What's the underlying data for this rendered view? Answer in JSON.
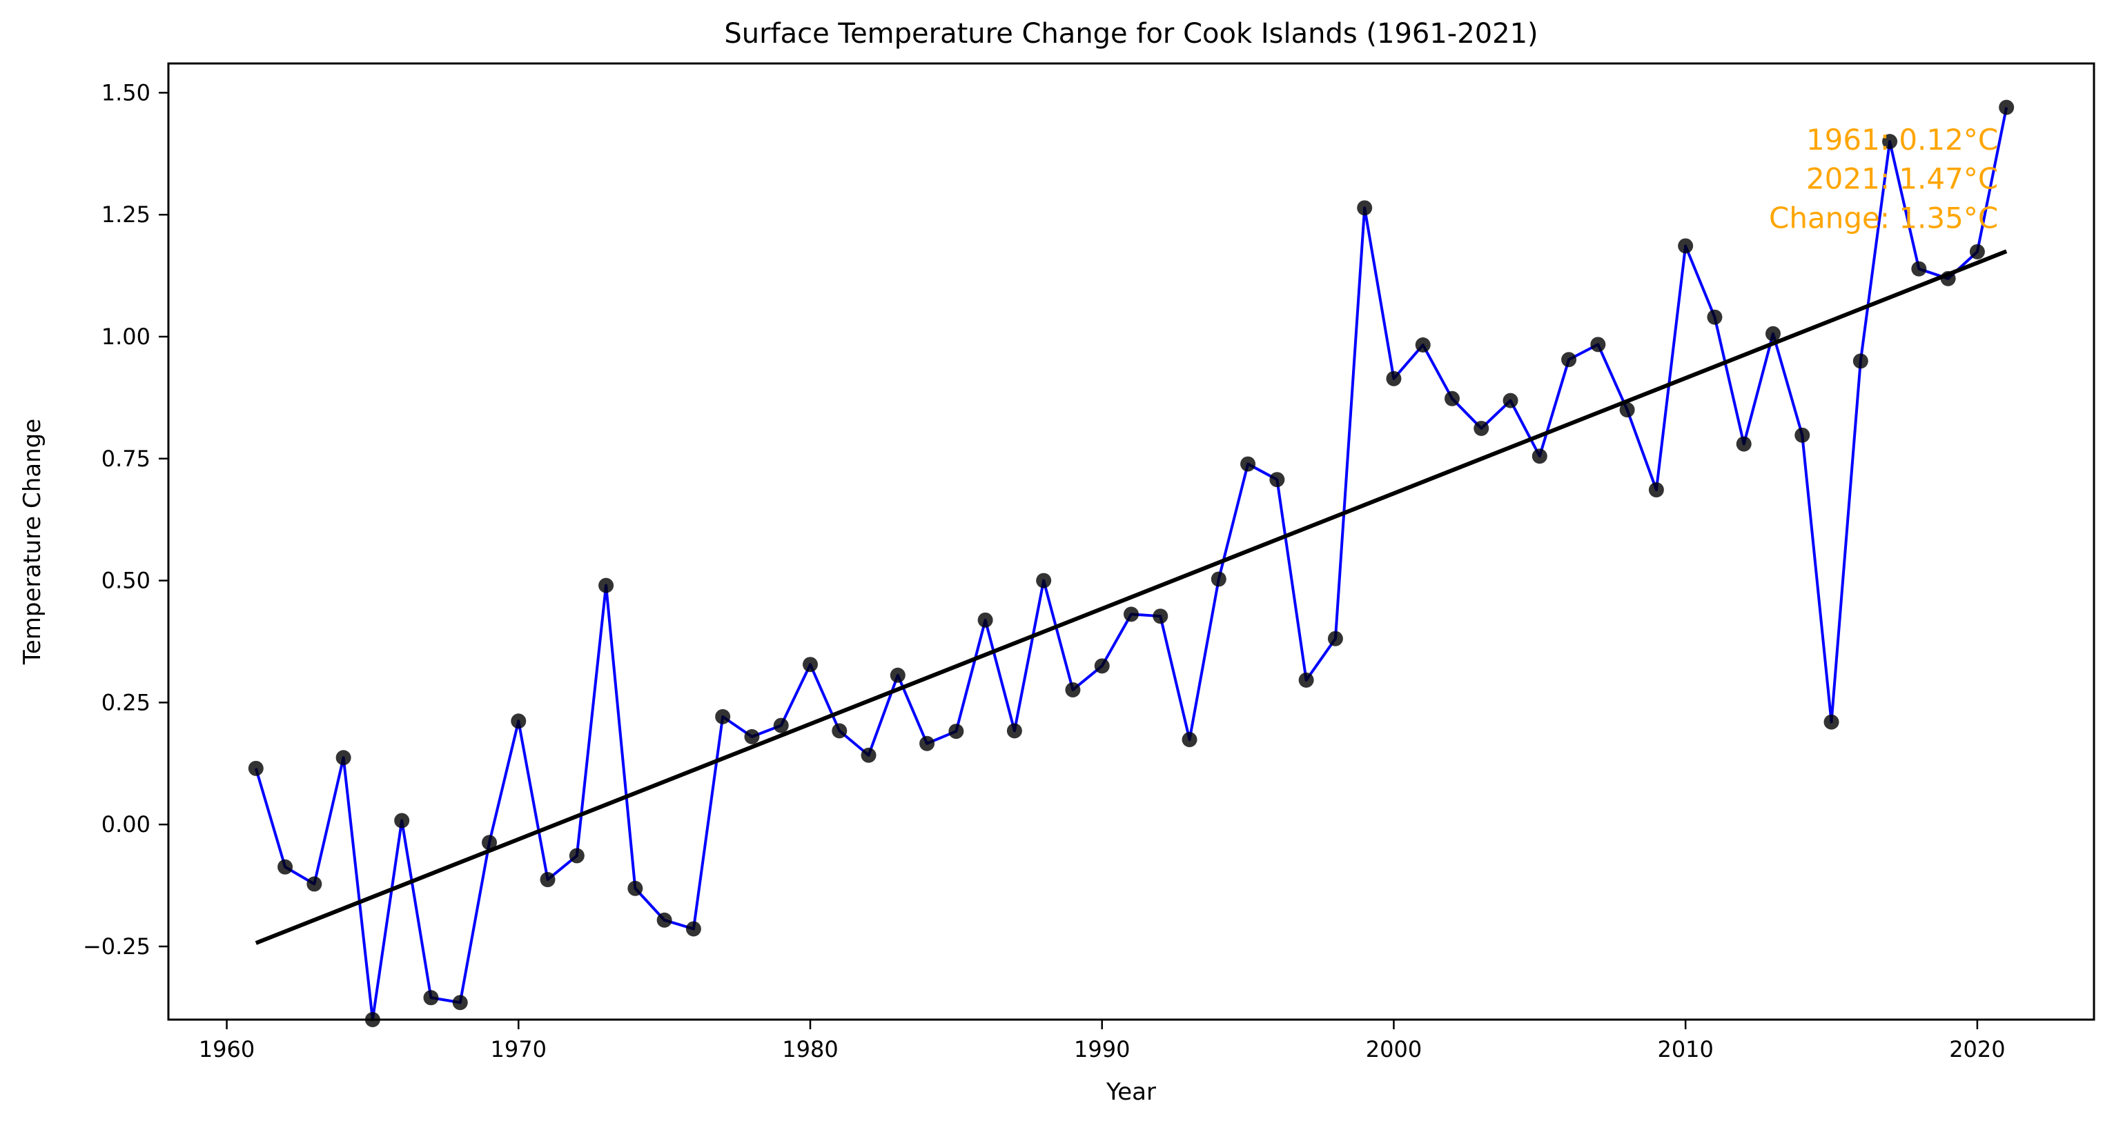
{
  "chart_data": {
    "type": "line",
    "title": "Surface Temperature Change for Cook Islands (1961-2021)",
    "xlabel": "Year",
    "ylabel": "Temperature Change",
    "xlim": [
      1958.0,
      2024.0
    ],
    "ylim": [
      -0.4,
      1.56
    ],
    "x_ticks": [
      1960,
      1970,
      1980,
      1990,
      2000,
      2010,
      2020
    ],
    "y_ticks": [
      -0.25,
      0.0,
      0.25,
      0.5,
      0.75,
      1.0,
      1.25,
      1.5
    ],
    "x_tick_labels": [
      "1960",
      "1970",
      "1980",
      "1990",
      "2000",
      "2010",
      "2020"
    ],
    "y_tick_labels": [
      "−0.25",
      "0.00",
      "0.25",
      "0.50",
      "0.75",
      "1.00",
      "1.25",
      "1.50"
    ],
    "grid": false,
    "series": [
      {
        "x": [
          1961,
          1962,
          1963,
          1964,
          1965,
          1966,
          1967,
          1968,
          1969,
          1970,
          1971,
          1972,
          1973,
          1974,
          1975,
          1976,
          1977,
          1978,
          1979,
          1980,
          1981,
          1982,
          1983,
          1984,
          1985,
          1986,
          1987,
          1988,
          1989,
          1990,
          1991,
          1992,
          1993,
          1994,
          1995,
          1996,
          1997,
          1998,
          1999,
          2000,
          2001,
          2002,
          2003,
          2004,
          2005,
          2006,
          2007,
          2008,
          2009,
          2010,
          2011,
          2012,
          2013,
          2014,
          2015,
          2016,
          2017,
          2018,
          2019,
          2020,
          2021
        ],
        "values": [
          0.115,
          -0.087,
          -0.122,
          0.137,
          -0.4,
          0.008,
          -0.355,
          -0.365,
          -0.037,
          0.212,
          -0.113,
          -0.064,
          0.49,
          -0.131,
          -0.196,
          -0.214,
          0.221,
          0.18,
          0.203,
          0.328,
          0.192,
          0.142,
          0.306,
          0.166,
          0.191,
          0.419,
          0.192,
          0.5,
          0.276,
          0.325,
          0.431,
          0.427,
          0.174,
          0.503,
          0.739,
          0.707,
          0.296,
          0.381,
          1.264,
          0.914,
          0.983,
          0.873,
          0.812,
          0.869,
          0.755,
          0.953,
          0.984,
          0.85,
          0.686,
          1.186,
          1.04,
          0.78,
          1.006,
          0.798,
          0.21,
          0.95,
          1.4,
          1.139,
          1.119,
          1.174,
          1.47
        ],
        "line_color": "#0000ff",
        "marker_color": "#000000"
      }
    ],
    "trend_line": {
      "x": [
        1961,
        2021
      ],
      "values": [
        -0.243,
        1.175
      ],
      "color": "#000000"
    },
    "annotations": [
      {
        "text": "1961: 0.12°C",
        "x": 2021,
        "y": 1.4,
        "color": "#ffa500"
      },
      {
        "text": "2021: 1.47°C",
        "x": 2021,
        "y": 1.32,
        "color": "#ffa500"
      },
      {
        "text": "Change: 1.35°C",
        "x": 2021,
        "y": 1.24,
        "color": "#ffa500"
      }
    ]
  }
}
